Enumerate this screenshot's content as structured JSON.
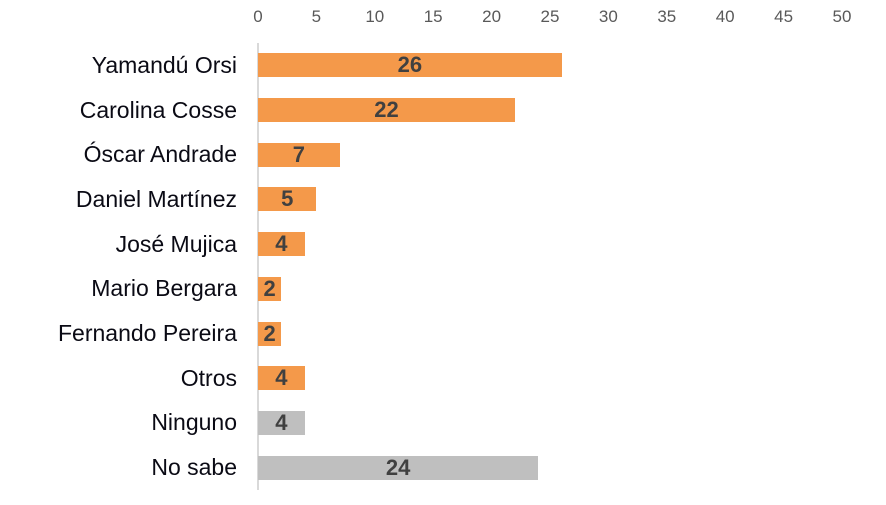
{
  "chart_data": {
    "type": "bar",
    "orientation": "horizontal",
    "title": "",
    "xlabel": "",
    "ylabel": "",
    "categories": [
      "Yamandú Orsi",
      "Carolina Cosse",
      "Óscar Andrade",
      "Daniel Martínez",
      "José Mujica",
      "Mario Bergara",
      "Fernando Pereira",
      "Otros",
      "Ninguno",
      "No sabe"
    ],
    "values": [
      26,
      22,
      7,
      5,
      4,
      2,
      2,
      4,
      4,
      24
    ],
    "bar_colors": [
      "orange",
      "orange",
      "orange",
      "orange",
      "orange",
      "orange",
      "orange",
      "orange",
      "gray",
      "gray"
    ],
    "palette": {
      "orange": "#F4994A",
      "gray": "#BFBFBF"
    },
    "value_label_color": "#404040",
    "tick_label_color": "#595959",
    "axis": {
      "position": "top",
      "range": [
        0,
        50
      ],
      "ticks": [
        "0",
        "5",
        "10",
        "15",
        "20",
        "25",
        "30",
        "35",
        "40",
        "45",
        "50"
      ],
      "grid": false,
      "legend": "none"
    }
  }
}
